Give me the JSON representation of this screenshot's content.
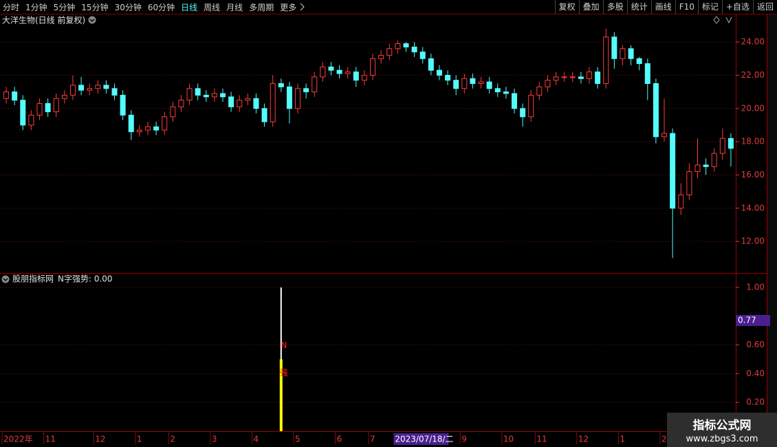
{
  "toolbar": {
    "left": [
      {
        "label": "分时"
      },
      {
        "label": "1分钟"
      },
      {
        "label": "5分钟"
      },
      {
        "label": "15分钟"
      },
      {
        "label": "30分钟"
      },
      {
        "label": "60分钟"
      },
      {
        "label": "日线",
        "active": true
      },
      {
        "label": "周线"
      },
      {
        "label": "月线"
      },
      {
        "label": "多周期"
      },
      {
        "label": "更多"
      }
    ],
    "right": [
      "复权",
      "叠加",
      "多股",
      "统计",
      "画线",
      "F10",
      "标记",
      "+自选",
      "返回"
    ]
  },
  "watermark": {
    "title": "指标公式网",
    "url": "www.zbgs3.com"
  },
  "chart_data": [
    {
      "type": "candlestick",
      "title": "大洋生物(日线 前复权)",
      "up_color": "#ff3c3c",
      "down_color": "#54fcfc",
      "grid": true,
      "ylim": [
        10.1,
        25.7
      ],
      "yticks": [
        {
          "value": 12,
          "label": "12.00"
        },
        {
          "value": 14,
          "label": "14.00"
        },
        {
          "value": 16,
          "label": "16.00"
        },
        {
          "value": 18,
          "label": "18.00"
        },
        {
          "value": 20,
          "label": "20.00"
        },
        {
          "value": 22,
          "label": "22.00"
        },
        {
          "value": 24,
          "label": "24.00"
        }
      ],
      "categories": [
        "2022年",
        null,
        null,
        null,
        null,
        "11",
        null,
        null,
        null,
        null,
        null,
        "12",
        null,
        null,
        null,
        null,
        "1",
        null,
        null,
        null,
        "2",
        null,
        null,
        null,
        null,
        "3",
        null,
        null,
        null,
        null,
        "4",
        null,
        null,
        null,
        null,
        "5",
        null,
        null,
        null,
        null,
        "6",
        null,
        null,
        null,
        "7",
        null,
        null,
        "2023/07/18/二",
        null,
        null,
        null,
        null,
        null,
        null,
        null,
        "9",
        null,
        null,
        null,
        null,
        "10",
        null,
        null,
        null,
        "11",
        null,
        null,
        null,
        null,
        "12",
        null,
        null,
        null,
        null,
        "1",
        null,
        null,
        null,
        null,
        "2",
        null,
        null,
        null,
        null,
        null,
        null,
        null,
        null
      ],
      "open": [
        20.6,
        21.0,
        20.5,
        19.0,
        19.6,
        20.3,
        19.8,
        20.6,
        20.8,
        21.4,
        21.1,
        21.2,
        21.4,
        21.2,
        20.8,
        19.6,
        18.6,
        18.7,
        18.9,
        18.7,
        19.5,
        20.1,
        20.5,
        21.2,
        20.8,
        20.7,
        20.9,
        20.7,
        20.1,
        20.5,
        20.6,
        20.0,
        19.2,
        21.5,
        21.3,
        20.0,
        21.2,
        21.0,
        21.9,
        22.5,
        22.3,
        22.1,
        22.2,
        21.7,
        22.0,
        23.0,
        23.2,
        23.6,
        23.9,
        23.7,
        23.4,
        23.0,
        22.3,
        22.0,
        21.7,
        21.2,
        21.8,
        21.5,
        21.6,
        21.2,
        21.0,
        20.9,
        20.0,
        19.5,
        20.8,
        21.3,
        21.7,
        21.9,
        21.9,
        21.9,
        21.8,
        22.2,
        21.5,
        24.3,
        23.0,
        23.6,
        23.0,
        22.7,
        21.5,
        18.3,
        18.5,
        14.0,
        14.8,
        16.2,
        16.6,
        16.5,
        17.3,
        18.2
      ],
      "high": [
        21.3,
        21.3,
        20.8,
        19.9,
        20.6,
        20.6,
        20.9,
        21.1,
        22.0,
        21.9,
        21.5,
        21.7,
        21.7,
        21.5,
        21.1,
        19.9,
        19.0,
        19.2,
        19.2,
        19.8,
        20.4,
        20.8,
        21.5,
        21.5,
        21.1,
        21.2,
        21.2,
        21.0,
        20.8,
        20.9,
        20.9,
        20.3,
        22.0,
        21.8,
        21.6,
        21.5,
        21.5,
        22.2,
        22.8,
        22.8,
        22.6,
        22.5,
        22.5,
        22.3,
        23.3,
        23.5,
        23.9,
        24.1,
        24.0,
        24.0,
        23.7,
        23.3,
        22.6,
        22.3,
        22.0,
        22.1,
        22.1,
        21.9,
        21.9,
        21.5,
        21.3,
        21.2,
        20.3,
        21.1,
        21.6,
        22.0,
        22.2,
        22.2,
        22.2,
        22.2,
        22.5,
        22.5,
        24.8,
        24.6,
        23.8,
        23.8,
        23.1,
        23.0,
        21.8,
        20.6,
        18.8,
        15.5,
        16.7,
        18.2,
        17.0,
        17.6,
        18.8,
        18.5
      ],
      "low": [
        20.3,
        20.2,
        18.7,
        18.7,
        19.3,
        19.5,
        19.5,
        20.3,
        20.5,
        20.8,
        20.8,
        20.9,
        20.9,
        20.5,
        19.3,
        18.1,
        18.3,
        18.4,
        18.4,
        18.4,
        19.2,
        19.8,
        20.2,
        20.5,
        20.4,
        20.4,
        20.4,
        19.8,
        19.8,
        20.2,
        19.7,
        18.9,
        18.9,
        21.0,
        19.1,
        19.7,
        20.6,
        20.7,
        21.6,
        22.0,
        21.8,
        21.8,
        21.3,
        21.4,
        21.7,
        22.7,
        22.9,
        23.3,
        23.4,
        23.1,
        22.7,
        22.0,
        21.7,
        21.4,
        20.8,
        20.9,
        21.2,
        21.2,
        20.9,
        20.7,
        20.6,
        19.7,
        18.9,
        19.2,
        20.5,
        21.0,
        21.4,
        21.6,
        21.6,
        21.5,
        21.5,
        21.2,
        21.2,
        22.4,
        22.6,
        22.6,
        22.3,
        20.5,
        17.9,
        18.0,
        11.0,
        13.6,
        14.5,
        15.8,
        16.0,
        16.2,
        16.9,
        16.5
      ],
      "close": [
        21.0,
        20.5,
        19.0,
        19.6,
        20.3,
        19.8,
        20.6,
        20.8,
        21.4,
        21.1,
        21.2,
        21.4,
        21.2,
        20.8,
        19.6,
        18.6,
        18.7,
        18.9,
        18.7,
        19.5,
        20.1,
        20.5,
        21.2,
        20.8,
        20.7,
        20.9,
        20.7,
        20.1,
        20.5,
        20.6,
        20.0,
        19.2,
        21.5,
        21.3,
        20.0,
        21.2,
        21.0,
        21.9,
        22.5,
        22.3,
        22.1,
        22.2,
        21.7,
        22.0,
        23.0,
        23.2,
        23.6,
        23.9,
        23.7,
        23.4,
        23.0,
        22.3,
        22.0,
        21.7,
        21.2,
        21.8,
        21.5,
        21.6,
        21.2,
        21.0,
        20.9,
        20.0,
        19.5,
        20.8,
        21.3,
        21.7,
        21.9,
        21.9,
        21.9,
        21.8,
        22.2,
        21.5,
        24.3,
        23.0,
        23.6,
        23.0,
        22.7,
        21.5,
        18.3,
        18.5,
        14.0,
        14.8,
        16.2,
        16.6,
        16.5,
        17.3,
        18.2,
        17.6
      ]
    },
    {
      "type": "bar",
      "title": "股朋指标网",
      "subtitle": "N字强势: 0.00",
      "grid": true,
      "cursor_value": 0.77,
      "ylim": [
        0,
        1.086
      ],
      "yticks": [
        {
          "value": 0.2,
          "label": "0.20"
        },
        {
          "value": 0.4,
          "label": "0.40"
        },
        {
          "value": 0.6,
          "label": "0.60"
        },
        {
          "value": 1,
          "label": "1.00"
        }
      ],
      "series": [
        {
          "name": "N",
          "color": "#ffffff",
          "values": [
            0,
            0,
            0,
            0,
            0,
            0,
            0,
            0,
            0,
            0,
            0,
            0,
            0,
            0,
            0,
            0,
            0,
            0,
            0,
            0,
            0,
            0,
            0,
            0,
            0,
            0,
            0,
            0,
            0,
            0,
            0,
            0,
            0,
            1,
            0,
            0,
            0,
            0,
            0,
            0,
            0,
            0,
            0,
            0,
            0,
            0,
            0,
            0,
            0,
            0,
            0,
            0,
            0,
            0,
            0,
            0,
            0,
            0,
            0,
            0,
            0,
            0,
            0,
            0,
            0,
            0,
            0,
            0,
            0,
            0,
            0,
            0,
            0,
            0,
            0,
            0,
            0,
            0,
            0,
            0,
            0,
            0,
            0,
            0,
            0,
            0,
            0,
            0
          ]
        },
        {
          "name": "强",
          "color": "#ffff00",
          "values": [
            0,
            0,
            0,
            0,
            0,
            0,
            0,
            0,
            0,
            0,
            0,
            0,
            0,
            0,
            0,
            0,
            0,
            0,
            0,
            0,
            0,
            0,
            0,
            0,
            0,
            0,
            0,
            0,
            0,
            0,
            0,
            0,
            0,
            0.5,
            0,
            0,
            0,
            0,
            0,
            0,
            0,
            0,
            0,
            0,
            0,
            0,
            0,
            0,
            0,
            0,
            0,
            0,
            0,
            0,
            0,
            0,
            0,
            0,
            0,
            0,
            0,
            0,
            0,
            0,
            0,
            0,
            0,
            0,
            0,
            0,
            0,
            0,
            0,
            0,
            0,
            0,
            0,
            0,
            0,
            0,
            0,
            0,
            0,
            0,
            0,
            0,
            0,
            0
          ]
        }
      ]
    }
  ]
}
